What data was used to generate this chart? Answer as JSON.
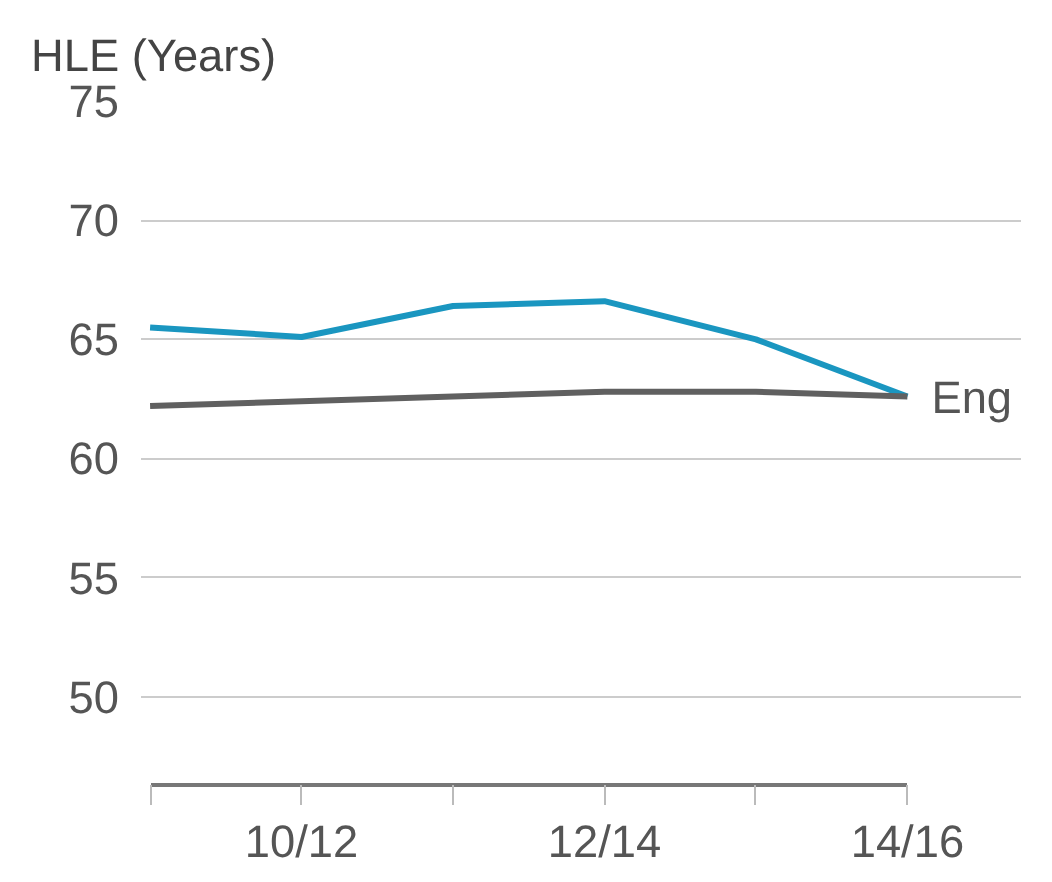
{
  "chart_data": {
    "type": "line",
    "ylabel": "HLE (Years)",
    "categories": [
      null,
      "10/12",
      null,
      "12/14",
      null,
      "14/16"
    ],
    "series": [
      {
        "color": "#1a96c0",
        "values": [
          65.5,
          65.1,
          66.4,
          66.6,
          65.0,
          62.6
        ]
      },
      {
        "name": "Eng",
        "color": "#606060",
        "values": [
          62.2,
          62.4,
          62.6,
          62.8,
          62.8,
          62.6
        ]
      }
    ],
    "ylim": [
      46.3,
      75
    ],
    "yticks": [
      50,
      55,
      60,
      65,
      70,
      75
    ],
    "grid": "y"
  }
}
